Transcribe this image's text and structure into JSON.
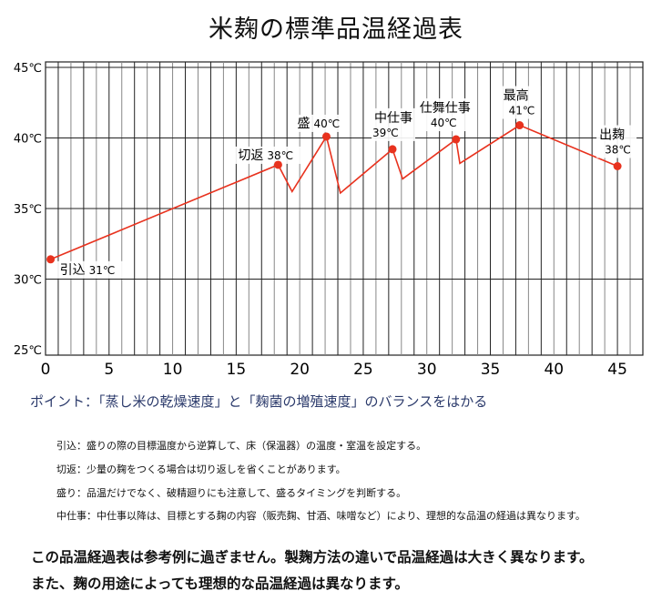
{
  "chart_data": {
    "type": "line",
    "title": "米麹の標準品温経過表",
    "xlim": [
      0,
      47
    ],
    "ylim": [
      25,
      45
    ],
    "x_ticks": [
      0,
      5,
      10,
      15,
      20,
      25,
      30,
      35,
      40,
      45
    ],
    "y_ticks": [
      25,
      30,
      35,
      40,
      45
    ],
    "y_tick_labels": [
      "25℃",
      "30℃",
      "35℃",
      "40℃",
      "45℃"
    ],
    "grid": true,
    "line_color": "#e8321e",
    "points": [
      {
        "x": 0.4,
        "y": 31.4
      },
      {
        "x": 18.3,
        "y": 38.1
      },
      {
        "x": 19.4,
        "y": 36.2
      },
      {
        "x": 22.1,
        "y": 40.1
      },
      {
        "x": 23.2,
        "y": 36.1
      },
      {
        "x": 27.3,
        "y": 39.2
      },
      {
        "x": 28.1,
        "y": 37.1
      },
      {
        "x": 32.3,
        "y": 39.9
      },
      {
        "x": 32.6,
        "y": 38.2
      },
      {
        "x": 37.3,
        "y": 40.9
      },
      {
        "x": 45,
        "y": 38.0
      }
    ],
    "annotations": [
      {
        "name": "引込",
        "temp": "31℃",
        "x": 0.4,
        "y": 31.4
      },
      {
        "name": "切返",
        "temp": "38℃",
        "x": 18.3,
        "y": 38.1
      },
      {
        "name": "盛",
        "temp": "40℃",
        "x": 22.1,
        "y": 40.1
      },
      {
        "name": "中仕事",
        "temp": "39℃",
        "x": 27.3,
        "y": 39.2
      },
      {
        "name": "仕舞仕事",
        "temp": "40℃",
        "x": 32.3,
        "y": 39.9
      },
      {
        "name": "最高",
        "temp": "41℃",
        "x": 37.3,
        "y": 40.9
      },
      {
        "name": "出麹",
        "temp": "38℃",
        "x": 45,
        "y": 38.0
      }
    ]
  },
  "point": "ポイント：「蒸し米の乾燥速度」と「麹菌の増殖速度」のバランスをはかる",
  "notes": [
    "引込：盛りの際の目標温度から逆算して、床（保温器）の温度・室温を設定する。",
    "切返：少量の麹をつくる場合は切り返しを省くことがあります。",
    "盛り：品温だけでなく、破精廻りにも注意して、盛るタイミングを判断する。",
    "中仕事：中仕事以降は、目標とする麹の内容（販売麹、甘酒、味噌など）により、理想的な品温の経過は異なります。"
  ],
  "footer": [
    "この品温経過表は参考例に過ぎません。製麹方法の違いで品温経過は大きく異なります。",
    "また、麹の用途によっても理想的な品温経過は異なります。"
  ]
}
